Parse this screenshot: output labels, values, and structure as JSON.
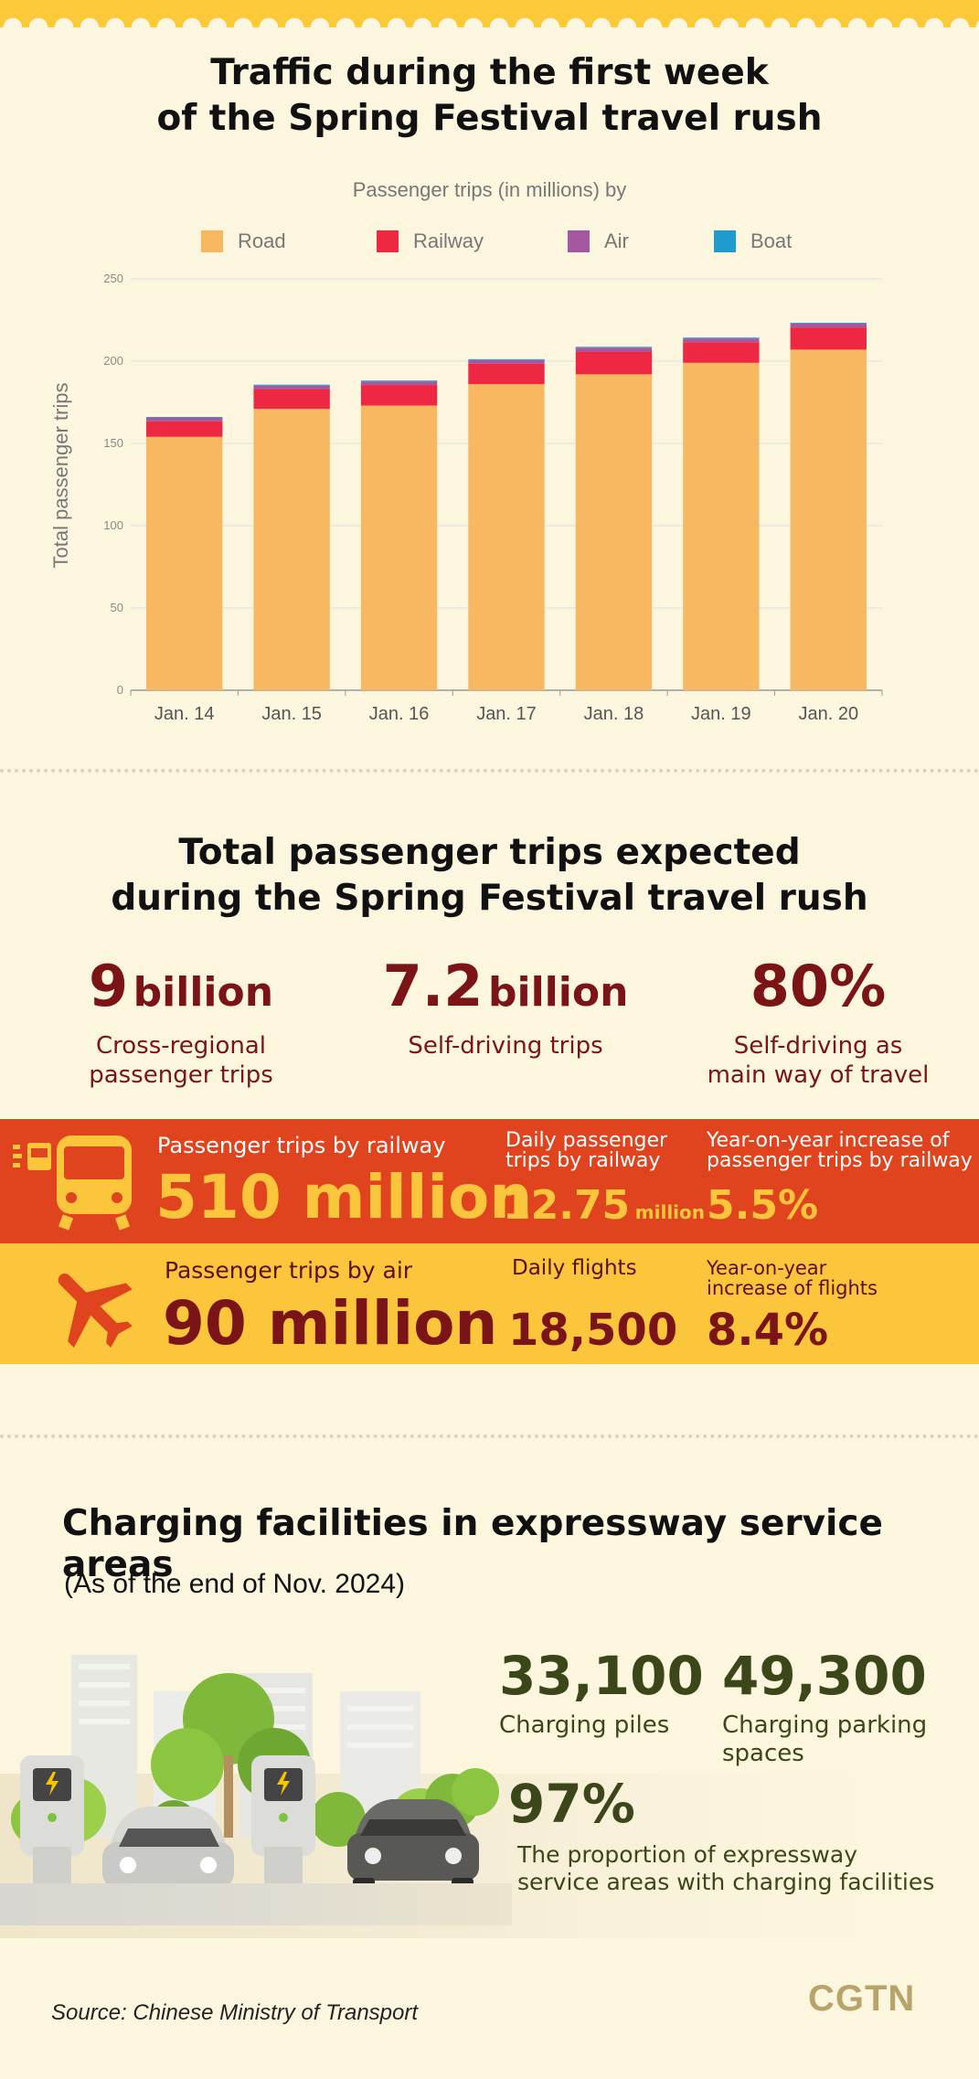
{
  "section1": {
    "title_line1": "Traffic during the first week",
    "title_line2": "of the Spring Festival travel rush"
  },
  "chart_data": {
    "type": "bar",
    "stacked": true,
    "subtitle": "Passenger trips (in millions) by",
    "ylabel": "Total passenger trips",
    "xlabel": "",
    "ylim": [
      0,
      250
    ],
    "yticks": [
      0,
      50,
      100,
      150,
      200,
      250
    ],
    "grid": true,
    "legend_position": "top",
    "categories": [
      "Jan. 14",
      "Jan. 15",
      "Jan. 16",
      "Jan. 17",
      "Jan. 18",
      "Jan. 19",
      "Jan. 20"
    ],
    "series": [
      {
        "name": "Road",
        "color": "#f8b862",
        "values": [
          154,
          171,
          173,
          186,
          192,
          199,
          207
        ]
      },
      {
        "name": "Railway",
        "color": "#ee2742",
        "values": [
          9.5,
          12,
          12.5,
          12.5,
          14,
          12.5,
          13.5
        ]
      },
      {
        "name": "Air",
        "color": "#a557a0",
        "values": [
          2.1,
          2.1,
          2.2,
          2.2,
          2.2,
          2.3,
          2.3
        ]
      },
      {
        "name": "Boat",
        "color": "#1f9bd0",
        "values": [
          0.5,
          0.6,
          0.5,
          0.5,
          0.5,
          0.5,
          0.5
        ]
      }
    ]
  },
  "section2": {
    "title_line1": "Total passenger trips expected",
    "title_line2": "during the Spring Festival travel rush",
    "stats": [
      {
        "number": "9",
        "unit": "billion",
        "caption1": "Cross-regional",
        "caption2": "passenger trips"
      },
      {
        "number": "7.2",
        "unit": "billion",
        "caption1": "Self-driving trips",
        "caption2": ""
      },
      {
        "number": "80%",
        "unit": "",
        "caption1": "Self-driving as",
        "caption2": "main way of travel"
      }
    ],
    "railway": {
      "label": "Passenger trips by railway",
      "value": "510 million",
      "daily_label1": "Daily passenger",
      "daily_label2": "trips by railway",
      "daily_value": "12.75",
      "daily_unit": "million",
      "yoy_label1": "Year-on-year increase of",
      "yoy_label2": "passenger trips by railway",
      "yoy_value": "5.5%"
    },
    "air": {
      "label": "Passenger trips by air",
      "value": "90 million",
      "daily_label": "Daily flights",
      "daily_value": "18,500",
      "yoy_label1": "Year-on-year",
      "yoy_label2": "increase of flights",
      "yoy_value": "8.4%"
    }
  },
  "section3": {
    "title": "Charging facilities in expressway service areas",
    "subtitle": "(As of the end of Nov. 2024)",
    "piles_value": "33,100",
    "piles_label": "Charging piles",
    "spaces_value": "49,300",
    "spaces_label1": "Charging parking",
    "spaces_label2": "spaces",
    "proportion_value": "97%",
    "proportion_label1": "The proportion of expressway",
    "proportion_label2": "service areas with charging facilities"
  },
  "footer": {
    "source": "Source: Chinese Ministry of Transport",
    "brand": "CGTN"
  }
}
